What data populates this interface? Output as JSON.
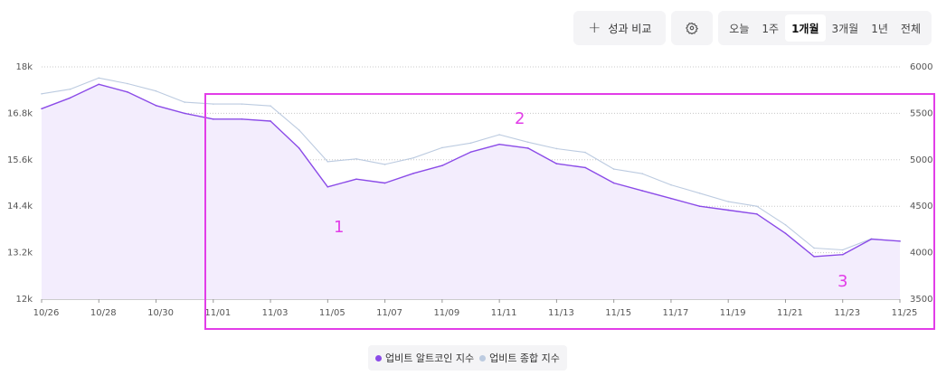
{
  "toolbar": {
    "compare_label": "성과 비교",
    "ranges": [
      "오늘",
      "1주",
      "1개월",
      "3개월",
      "1년",
      "전체"
    ],
    "active_range": "1개월"
  },
  "colors": {
    "alt_index": "#8b4be8",
    "composite_index": "#bccbe0",
    "fill": "#f3edfd",
    "annotation": "#e23de8"
  },
  "annotations": [
    "1",
    "2",
    "3"
  ],
  "chart_data": {
    "type": "line",
    "title": "",
    "x": [
      "10/26",
      "10/27",
      "10/28",
      "10/29",
      "10/30",
      "10/31",
      "11/01",
      "11/02",
      "11/03",
      "11/04",
      "11/05",
      "11/06",
      "11/07",
      "11/08",
      "11/09",
      "11/10",
      "11/11",
      "11/12",
      "11/13",
      "11/14",
      "11/15",
      "11/16",
      "11/17",
      "11/18",
      "11/19",
      "11/20",
      "11/21",
      "11/22",
      "11/23",
      "11/24",
      "11/25"
    ],
    "x_tick_labels": [
      "10/26",
      "10/28",
      "10/30",
      "11/01",
      "11/03",
      "11/05",
      "11/07",
      "11/09",
      "11/11",
      "11/13",
      "11/15",
      "11/17",
      "11/19",
      "11/21",
      "11/23",
      "11/25"
    ],
    "y_left_ticks": [
      "12k",
      "13.2k",
      "14.4k",
      "15.6k",
      "16.8k",
      "18k"
    ],
    "y_left_lim": [
      12000,
      18000
    ],
    "y_right_ticks": [
      "3500",
      "4000",
      "4500",
      "5000",
      "5500",
      "6000"
    ],
    "y_right_lim": [
      3500,
      6000
    ],
    "grid": true,
    "legend_position": "bottom-center",
    "series": [
      {
        "name": "업비트 알트코인 지수",
        "axis": "left",
        "fill": true,
        "values": [
          16920,
          17200,
          17550,
          17350,
          17000,
          16800,
          16650,
          16650,
          16600,
          15900,
          14900,
          15100,
          15000,
          15250,
          15450,
          15800,
          16000,
          15900,
          15500,
          15400,
          15000,
          14800,
          14600,
          14400,
          14300,
          14200,
          13700,
          13100,
          13150,
          13550,
          13500
        ]
      },
      {
        "name": "업비트 종합 지수",
        "axis": "right",
        "fill": false,
        "values": [
          5710,
          5760,
          5880,
          5820,
          5740,
          5620,
          5600,
          5600,
          5580,
          5320,
          4980,
          5010,
          4950,
          5020,
          5130,
          5180,
          5270,
          5190,
          5120,
          5080,
          4900,
          4850,
          4730,
          4640,
          4550,
          4500,
          4300,
          4050,
          4030,
          4150,
          4120
        ]
      }
    ]
  }
}
